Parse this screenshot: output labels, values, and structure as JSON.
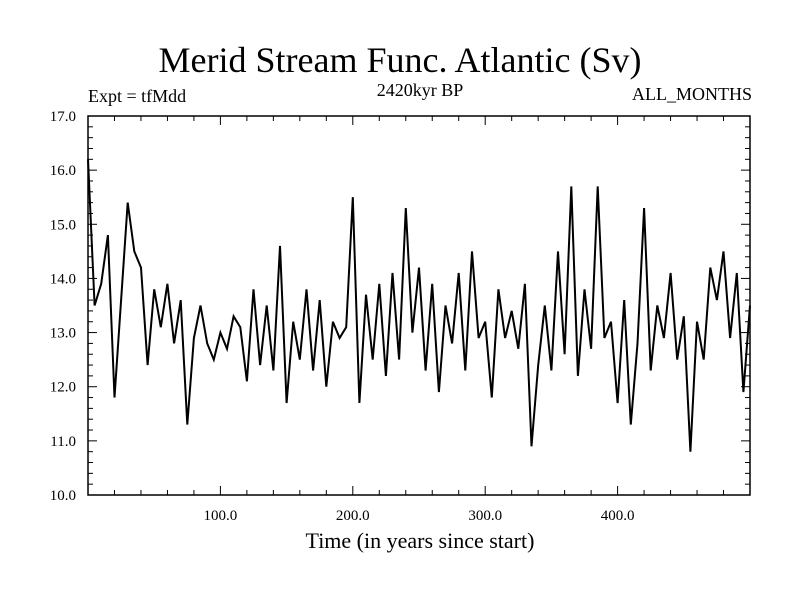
{
  "chart_data": {
    "type": "line",
    "title": "Merid Stream Func. Atlantic (Sv)",
    "subtitle": "2420kyr BP",
    "left_annotation": "Expt = tfMdd",
    "right_annotation": "ALL_MONTHS",
    "xlabel": "Time (in years since start)",
    "ylabel": "",
    "xlim": [
      0,
      500
    ],
    "ylim": [
      10.0,
      17.0
    ],
    "xticks": [
      100.0,
      200.0,
      300.0,
      400.0
    ],
    "xtick_labels": [
      "100.0",
      "200.0",
      "300.0",
      "400.0"
    ],
    "yticks": [
      10.0,
      11.0,
      12.0,
      13.0,
      14.0,
      15.0,
      16.0,
      17.0
    ],
    "ytick_labels": [
      "10.0",
      "11.0",
      "12.0",
      "13.0",
      "14.0",
      "15.0",
      "16.0",
      "17.0"
    ],
    "grid": false,
    "series": [
      {
        "name": "Merid Stream Func. Atlantic",
        "x": [
          0,
          5,
          10,
          15,
          20,
          25,
          30,
          35,
          40,
          45,
          50,
          55,
          60,
          65,
          70,
          75,
          80,
          85,
          90,
          95,
          100,
          105,
          110,
          115,
          120,
          125,
          130,
          135,
          140,
          145,
          150,
          155,
          160,
          165,
          170,
          175,
          180,
          185,
          190,
          195,
          200,
          205,
          210,
          215,
          220,
          225,
          230,
          235,
          240,
          245,
          250,
          255,
          260,
          265,
          270,
          275,
          280,
          285,
          290,
          295,
          300,
          305,
          310,
          315,
          320,
          325,
          330,
          335,
          340,
          345,
          350,
          355,
          360,
          365,
          370,
          375,
          380,
          385,
          390,
          395,
          400,
          405,
          410,
          415,
          420,
          425,
          430,
          435,
          440,
          445,
          450,
          455,
          460,
          465,
          470,
          475,
          480,
          485,
          490,
          495,
          500
        ],
        "values": [
          16.2,
          13.5,
          13.9,
          14.8,
          11.8,
          13.6,
          15.4,
          14.5,
          14.2,
          12.4,
          13.8,
          13.1,
          13.9,
          12.8,
          13.6,
          11.3,
          12.9,
          13.5,
          12.8,
          12.5,
          13.0,
          12.7,
          13.3,
          13.1,
          12.1,
          13.8,
          12.4,
          13.5,
          12.3,
          14.6,
          11.7,
          13.2,
          12.5,
          13.8,
          12.3,
          13.6,
          12.0,
          13.2,
          12.9,
          13.1,
          15.5,
          11.7,
          13.7,
          12.5,
          13.9,
          12.2,
          14.1,
          12.5,
          15.3,
          13.0,
          14.2,
          12.3,
          13.9,
          11.9,
          13.5,
          12.8,
          14.1,
          12.3,
          14.5,
          12.9,
          13.2,
          11.8,
          13.8,
          12.9,
          13.4,
          12.7,
          13.9,
          10.9,
          12.4,
          13.5,
          12.3,
          14.5,
          12.6,
          15.7,
          12.2,
          13.8,
          12.7,
          15.7,
          12.9,
          13.2,
          11.7,
          13.6,
          11.3,
          12.8,
          15.3,
          12.3,
          13.5,
          12.9,
          14.1,
          12.5,
          13.3,
          10.8,
          13.2,
          12.5,
          14.2,
          13.6,
          14.5,
          12.9,
          14.1,
          11.9,
          13.5
        ]
      }
    ]
  }
}
